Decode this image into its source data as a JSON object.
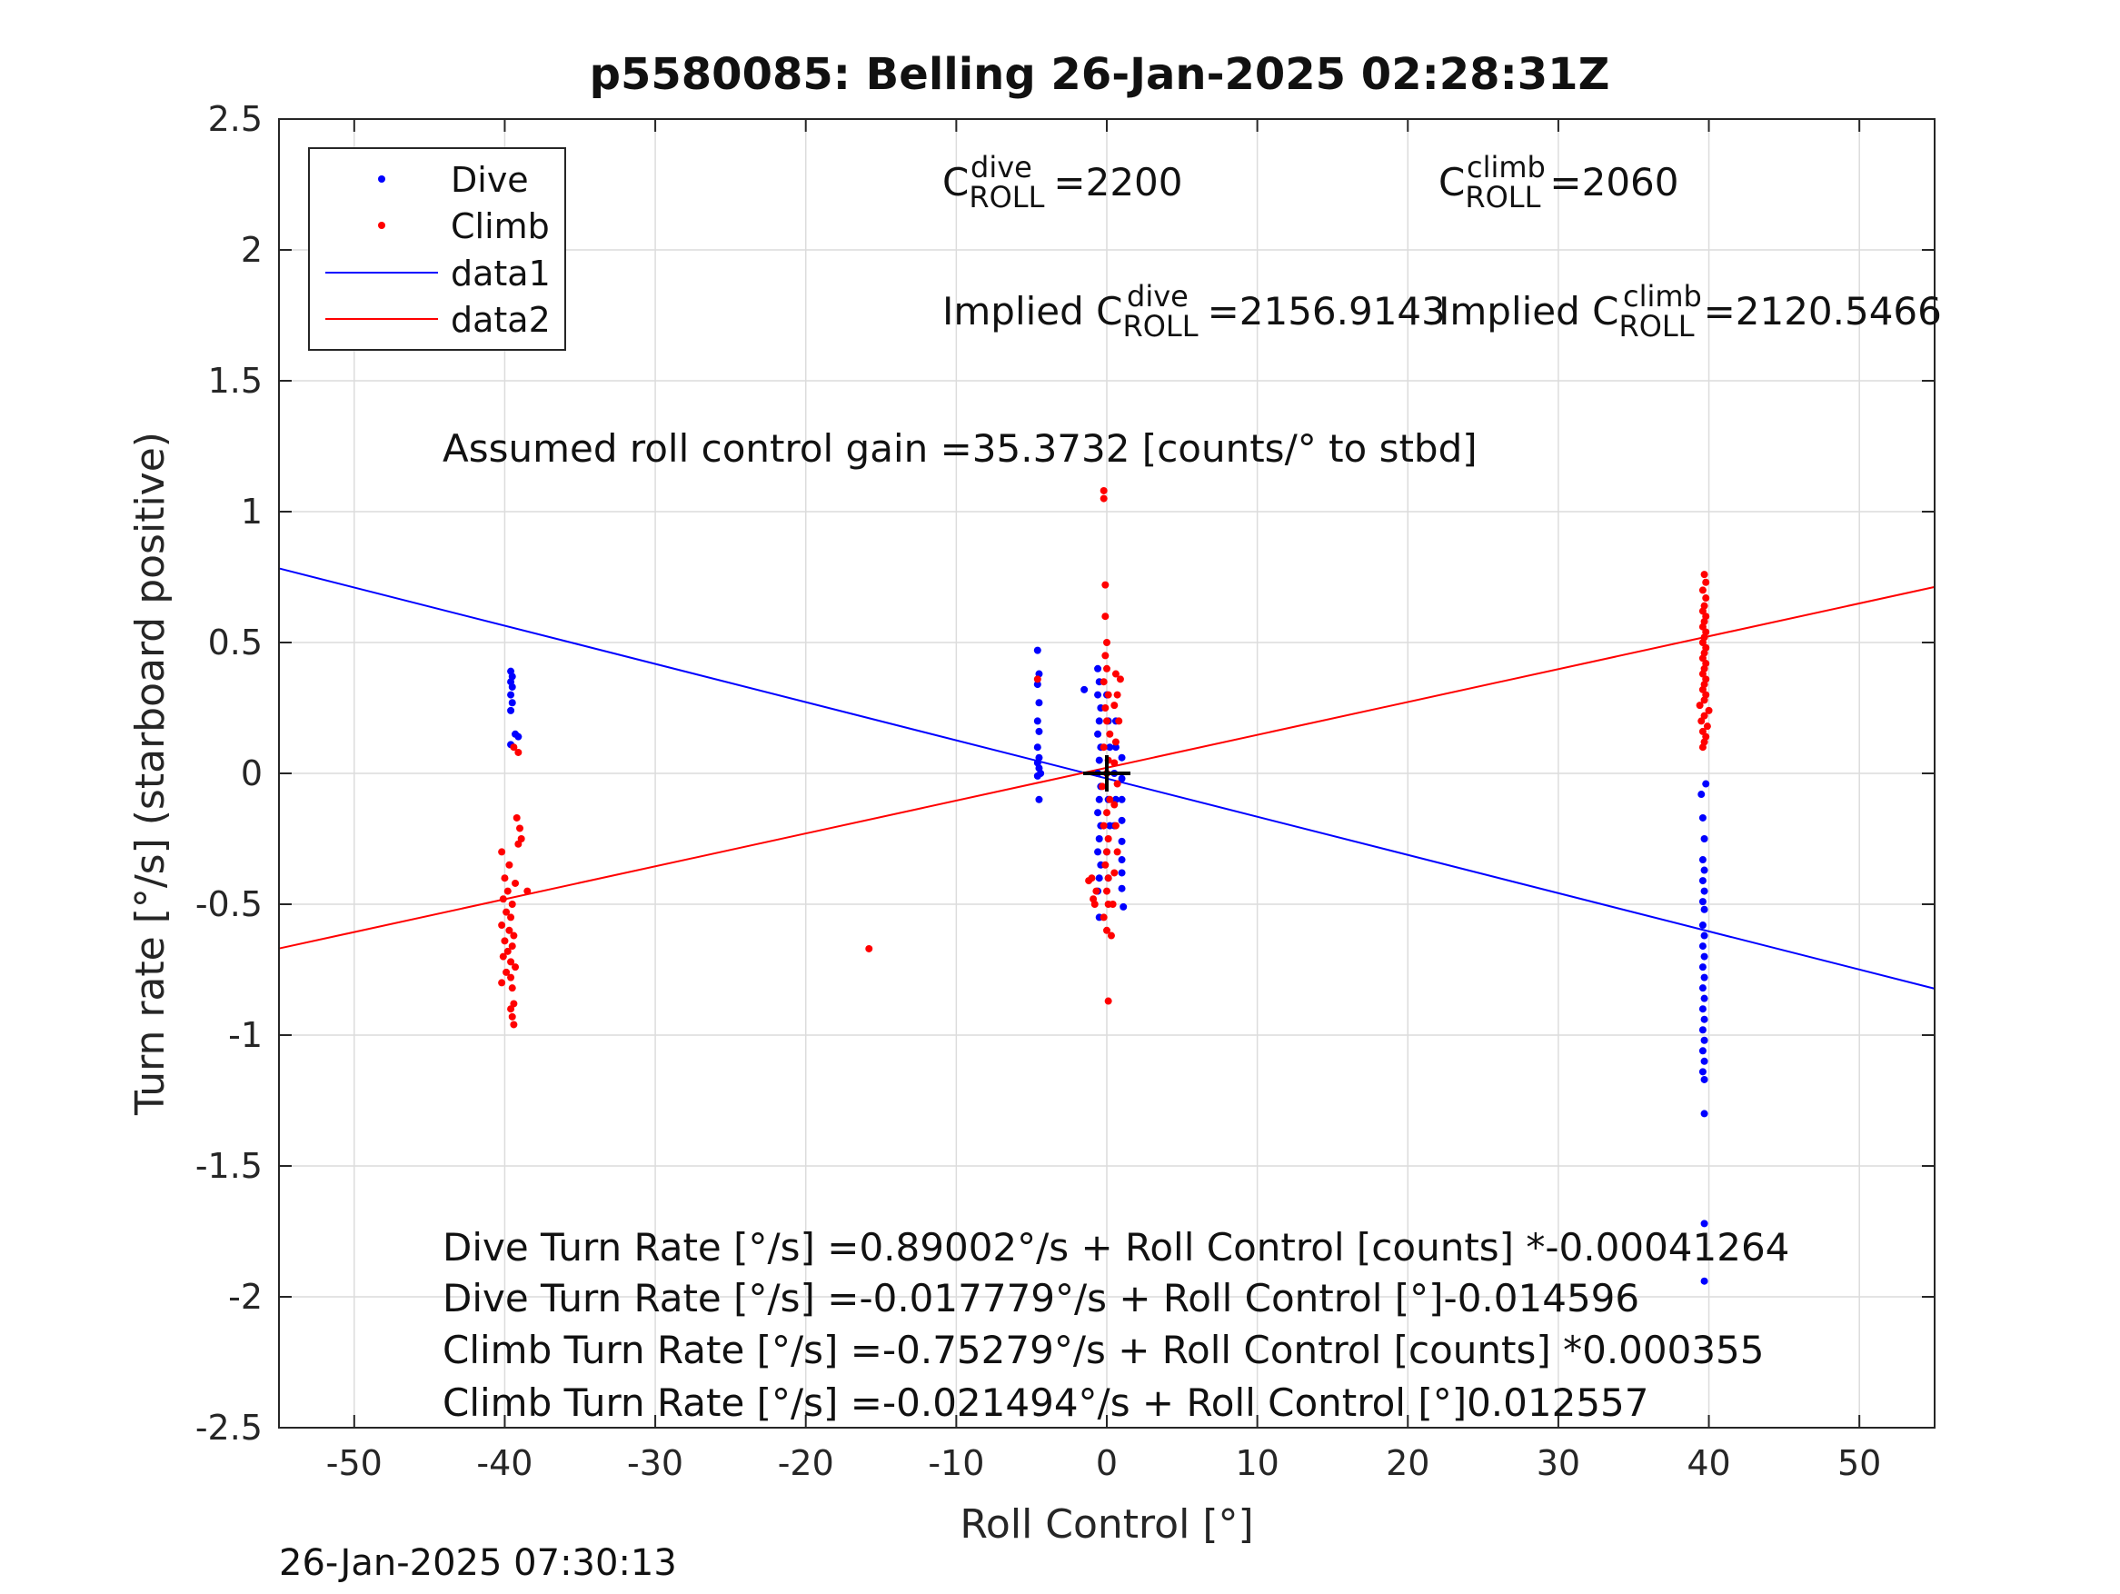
{
  "chart_data": {
    "type": "scatter",
    "title": "p5580085: Belling 26-Jan-2025 02:28:31Z",
    "xlabel": "Roll Control [°]",
    "ylabel": "Turn rate [°/s] (starboard positive)",
    "xlim": [
      -55,
      55
    ],
    "ylim": [
      -2.5,
      2.5
    ],
    "xticks": [
      -50,
      -40,
      -30,
      -20,
      -10,
      0,
      10,
      20,
      30,
      40,
      50
    ],
    "yticks": [
      2.5,
      2,
      1.5,
      1,
      0.5,
      0,
      -0.5,
      -1,
      -1.5,
      -2,
      -2.5
    ],
    "xtick_labels": [
      "-50",
      "-40",
      "-30",
      "-20",
      "-10",
      "0",
      "10",
      "20",
      "30",
      "40",
      "50"
    ],
    "ytick_labels": [
      "2.5",
      "2",
      "1.5",
      "1",
      "0.5",
      "0",
      "-0.5",
      "-1",
      "-1.5",
      "-2",
      "-2.5"
    ],
    "grid": true,
    "legend_position": "top-left",
    "legend": [
      "Dive",
      "Climb",
      "data1",
      "data2"
    ],
    "series": [
      {
        "name": "Dive",
        "kind": "points",
        "color": "#0000ff",
        "points": [
          [
            -39.6,
            0.39
          ],
          [
            -39.5,
            0.37
          ],
          [
            -39.6,
            0.35
          ],
          [
            -39.5,
            0.33
          ],
          [
            -39.6,
            0.3
          ],
          [
            -39.5,
            0.27
          ],
          [
            -39.6,
            0.24
          ],
          [
            -39.3,
            0.15
          ],
          [
            -39.1,
            0.14
          ],
          [
            -39.6,
            0.11
          ],
          [
            -4.6,
            0.47
          ],
          [
            -4.5,
            0.38
          ],
          [
            -4.6,
            0.34
          ],
          [
            -4.5,
            0.27
          ],
          [
            -4.6,
            0.2
          ],
          [
            -4.5,
            0.16
          ],
          [
            -4.6,
            0.1
          ],
          [
            -4.5,
            0.06
          ],
          [
            -4.6,
            0.04
          ],
          [
            -4.5,
            0.02
          ],
          [
            -4.4,
            0.0
          ],
          [
            -4.6,
            -0.01
          ],
          [
            -4.5,
            -0.1
          ],
          [
            -1.5,
            0.32
          ],
          [
            -0.6,
            0.4
          ],
          [
            -0.5,
            0.35
          ],
          [
            -0.6,
            0.3
          ],
          [
            -0.4,
            0.25
          ],
          [
            -0.5,
            0.2
          ],
          [
            -0.6,
            0.15
          ],
          [
            -0.4,
            0.1
          ],
          [
            -0.5,
            0.05
          ],
          [
            -0.6,
            0.0
          ],
          [
            -0.4,
            -0.05
          ],
          [
            -0.5,
            -0.1
          ],
          [
            -0.6,
            -0.15
          ],
          [
            -0.4,
            -0.2
          ],
          [
            -0.5,
            -0.25
          ],
          [
            -0.6,
            -0.3
          ],
          [
            -0.4,
            -0.35
          ],
          [
            -0.5,
            -0.4
          ],
          [
            -0.6,
            -0.45
          ],
          [
            -0.5,
            -0.55
          ],
          [
            0.0,
            0.3
          ],
          [
            0.1,
            0.2
          ],
          [
            0.2,
            0.1
          ],
          [
            0.0,
            0.0
          ],
          [
            0.1,
            -0.1
          ],
          [
            0.2,
            -0.2
          ],
          [
            0.0,
            -0.3
          ],
          [
            0.1,
            -0.4
          ],
          [
            0.6,
            0.2
          ],
          [
            0.6,
            0.1
          ],
          [
            0.5,
            0.0
          ],
          [
            0.6,
            -0.1
          ],
          [
            0.5,
            -0.2
          ],
          [
            1.0,
            0.06
          ],
          [
            1.0,
            -0.02
          ],
          [
            1.0,
            -0.1
          ],
          [
            1.0,
            -0.18
          ],
          [
            1.0,
            -0.26
          ],
          [
            1.0,
            -0.33
          ],
          [
            1.0,
            -0.38
          ],
          [
            1.0,
            -0.44
          ],
          [
            1.1,
            -0.51
          ],
          [
            39.5,
            -0.08
          ],
          [
            39.8,
            -0.04
          ],
          [
            39.6,
            -0.17
          ],
          [
            39.7,
            -0.25
          ],
          [
            39.6,
            -0.33
          ],
          [
            39.7,
            -0.37
          ],
          [
            39.6,
            -0.41
          ],
          [
            39.7,
            -0.45
          ],
          [
            39.6,
            -0.49
          ],
          [
            39.7,
            -0.52
          ],
          [
            39.6,
            -0.58
          ],
          [
            39.7,
            -0.62
          ],
          [
            39.6,
            -0.66
          ],
          [
            39.7,
            -0.7
          ],
          [
            39.6,
            -0.74
          ],
          [
            39.7,
            -0.78
          ],
          [
            39.6,
            -0.82
          ],
          [
            39.7,
            -0.86
          ],
          [
            39.6,
            -0.9
          ],
          [
            39.7,
            -0.94
          ],
          [
            39.6,
            -0.98
          ],
          [
            39.7,
            -1.02
          ],
          [
            39.6,
            -1.06
          ],
          [
            39.7,
            -1.1
          ],
          [
            39.6,
            -1.14
          ],
          [
            39.7,
            -1.17
          ],
          [
            39.7,
            -1.3
          ],
          [
            39.7,
            -1.72
          ],
          [
            39.7,
            -1.94
          ]
        ]
      },
      {
        "name": "Climb",
        "kind": "points",
        "color": "#ff0000",
        "points": [
          [
            -39.4,
            0.1
          ],
          [
            -39.1,
            0.08
          ],
          [
            -39.2,
            -0.17
          ],
          [
            -39.0,
            -0.21
          ],
          [
            -38.9,
            -0.25
          ],
          [
            -39.1,
            -0.27
          ],
          [
            -40.2,
            -0.3
          ],
          [
            -39.7,
            -0.35
          ],
          [
            -40.0,
            -0.4
          ],
          [
            -39.3,
            -0.42
          ],
          [
            -39.8,
            -0.45
          ],
          [
            -38.5,
            -0.45
          ],
          [
            -40.1,
            -0.48
          ],
          [
            -39.5,
            -0.5
          ],
          [
            -39.9,
            -0.53
          ],
          [
            -39.6,
            -0.55
          ],
          [
            -40.2,
            -0.58
          ],
          [
            -39.7,
            -0.6
          ],
          [
            -39.4,
            -0.62
          ],
          [
            -40.0,
            -0.64
          ],
          [
            -39.5,
            -0.66
          ],
          [
            -39.8,
            -0.68
          ],
          [
            -40.1,
            -0.7
          ],
          [
            -39.6,
            -0.72
          ],
          [
            -39.3,
            -0.74
          ],
          [
            -39.9,
            -0.76
          ],
          [
            -39.6,
            -0.78
          ],
          [
            -40.2,
            -0.8
          ],
          [
            -39.5,
            -0.82
          ],
          [
            -39.4,
            -0.88
          ],
          [
            -39.6,
            -0.9
          ],
          [
            -39.5,
            -0.93
          ],
          [
            -39.4,
            -0.96
          ],
          [
            -15.8,
            -0.67
          ],
          [
            -4.6,
            0.36
          ],
          [
            -0.2,
            1.08
          ],
          [
            -0.2,
            1.05
          ],
          [
            -0.1,
            0.72
          ],
          [
            -0.1,
            0.6
          ],
          [
            0.0,
            0.5
          ],
          [
            -0.1,
            0.45
          ],
          [
            0.0,
            0.4
          ],
          [
            -0.2,
            0.35
          ],
          [
            0.1,
            0.3
          ],
          [
            -0.1,
            0.25
          ],
          [
            0.0,
            0.2
          ],
          [
            0.2,
            0.15
          ],
          [
            -0.2,
            0.1
          ],
          [
            0.1,
            0.05
          ],
          [
            0.0,
            0.0
          ],
          [
            -0.3,
            -0.05
          ],
          [
            0.2,
            -0.1
          ],
          [
            0.0,
            -0.15
          ],
          [
            -0.2,
            -0.2
          ],
          [
            0.1,
            -0.25
          ],
          [
            0.0,
            -0.3
          ],
          [
            -0.1,
            -0.35
          ],
          [
            0.1,
            -0.4
          ],
          [
            0.0,
            -0.45
          ],
          [
            0.1,
            -0.5
          ],
          [
            -0.2,
            -0.55
          ],
          [
            0.0,
            -0.6
          ],
          [
            0.3,
            -0.62
          ],
          [
            0.1,
            -0.87
          ],
          [
            -1.0,
            -0.4
          ],
          [
            -1.2,
            -0.41
          ],
          [
            -0.7,
            -0.45
          ],
          [
            -0.8,
            -0.5
          ],
          [
            -0.9,
            -0.48
          ],
          [
            0.6,
            0.38
          ],
          [
            0.9,
            0.36
          ],
          [
            0.7,
            0.3
          ],
          [
            0.5,
            0.26
          ],
          [
            0.8,
            0.2
          ],
          [
            0.6,
            0.12
          ],
          [
            0.5,
            0.04
          ],
          [
            0.7,
            -0.04
          ],
          [
            0.5,
            -0.12
          ],
          [
            0.6,
            -0.2
          ],
          [
            0.7,
            -0.3
          ],
          [
            0.5,
            -0.38
          ],
          [
            0.4,
            -0.5
          ],
          [
            39.7,
            0.76
          ],
          [
            39.8,
            0.73
          ],
          [
            39.6,
            0.7
          ],
          [
            39.8,
            0.67
          ],
          [
            39.7,
            0.64
          ],
          [
            39.6,
            0.62
          ],
          [
            39.8,
            0.6
          ],
          [
            39.7,
            0.58
          ],
          [
            39.6,
            0.56
          ],
          [
            39.8,
            0.54
          ],
          [
            39.7,
            0.52
          ],
          [
            39.6,
            0.5
          ],
          [
            39.8,
            0.48
          ],
          [
            39.7,
            0.46
          ],
          [
            39.6,
            0.44
          ],
          [
            39.8,
            0.42
          ],
          [
            39.7,
            0.4
          ],
          [
            39.6,
            0.38
          ],
          [
            39.8,
            0.36
          ],
          [
            39.7,
            0.34
          ],
          [
            39.6,
            0.32
          ],
          [
            39.8,
            0.3
          ],
          [
            39.7,
            0.28
          ],
          [
            39.4,
            0.26
          ],
          [
            40.0,
            0.24
          ],
          [
            39.7,
            0.22
          ],
          [
            39.5,
            0.2
          ],
          [
            39.9,
            0.18
          ],
          [
            39.6,
            0.16
          ],
          [
            39.8,
            0.14
          ],
          [
            39.7,
            0.12
          ],
          [
            39.6,
            0.1
          ]
        ]
      },
      {
        "name": "data1",
        "kind": "line",
        "color": "#0000ff",
        "points": [
          [
            -55,
            0.7831
          ],
          [
            55,
            -0.8225
          ]
        ]
      },
      {
        "name": "data2",
        "kind": "line",
        "color": "#ff0000",
        "points": [
          [
            -55,
            -0.6691
          ],
          [
            55,
            0.7122
          ]
        ]
      }
    ],
    "center_marker": {
      "x": 0,
      "y": 0
    },
    "annotations": {
      "c_dive": {
        "base": "C",
        "sup": "dive",
        "sub": "ROLL",
        "value": "=2200"
      },
      "c_climb": {
        "base": "C",
        "sup": "climb",
        "sub": "ROLL",
        "value": "=2060"
      },
      "implied_dive": {
        "prefix": "Implied C",
        "sup": "dive",
        "sub": "ROLL",
        "value": "=2156.9143"
      },
      "implied_climb": {
        "prefix": "Implied C",
        "sup": "climb",
        "sub": "ROLL",
        "value": "=2120.5466"
      },
      "gain": "Assumed roll control gain =35.3732 [counts/° to stbd]",
      "fit_lines": [
        "Dive Turn Rate [°/s] =0.89002°/s + Roll Control [counts] *-0.00041264",
        "Dive Turn Rate [°/s] =-0.017779°/s + Roll Control [°]-0.014596",
        "Climb Turn Rate [°/s] =-0.75279°/s + Roll Control [counts] *0.000355",
        "Climb Turn Rate [°/s] =-0.021494°/s + Roll Control [°]0.012557"
      ]
    },
    "timestamp": "26-Jan-2025 07:30:13"
  }
}
